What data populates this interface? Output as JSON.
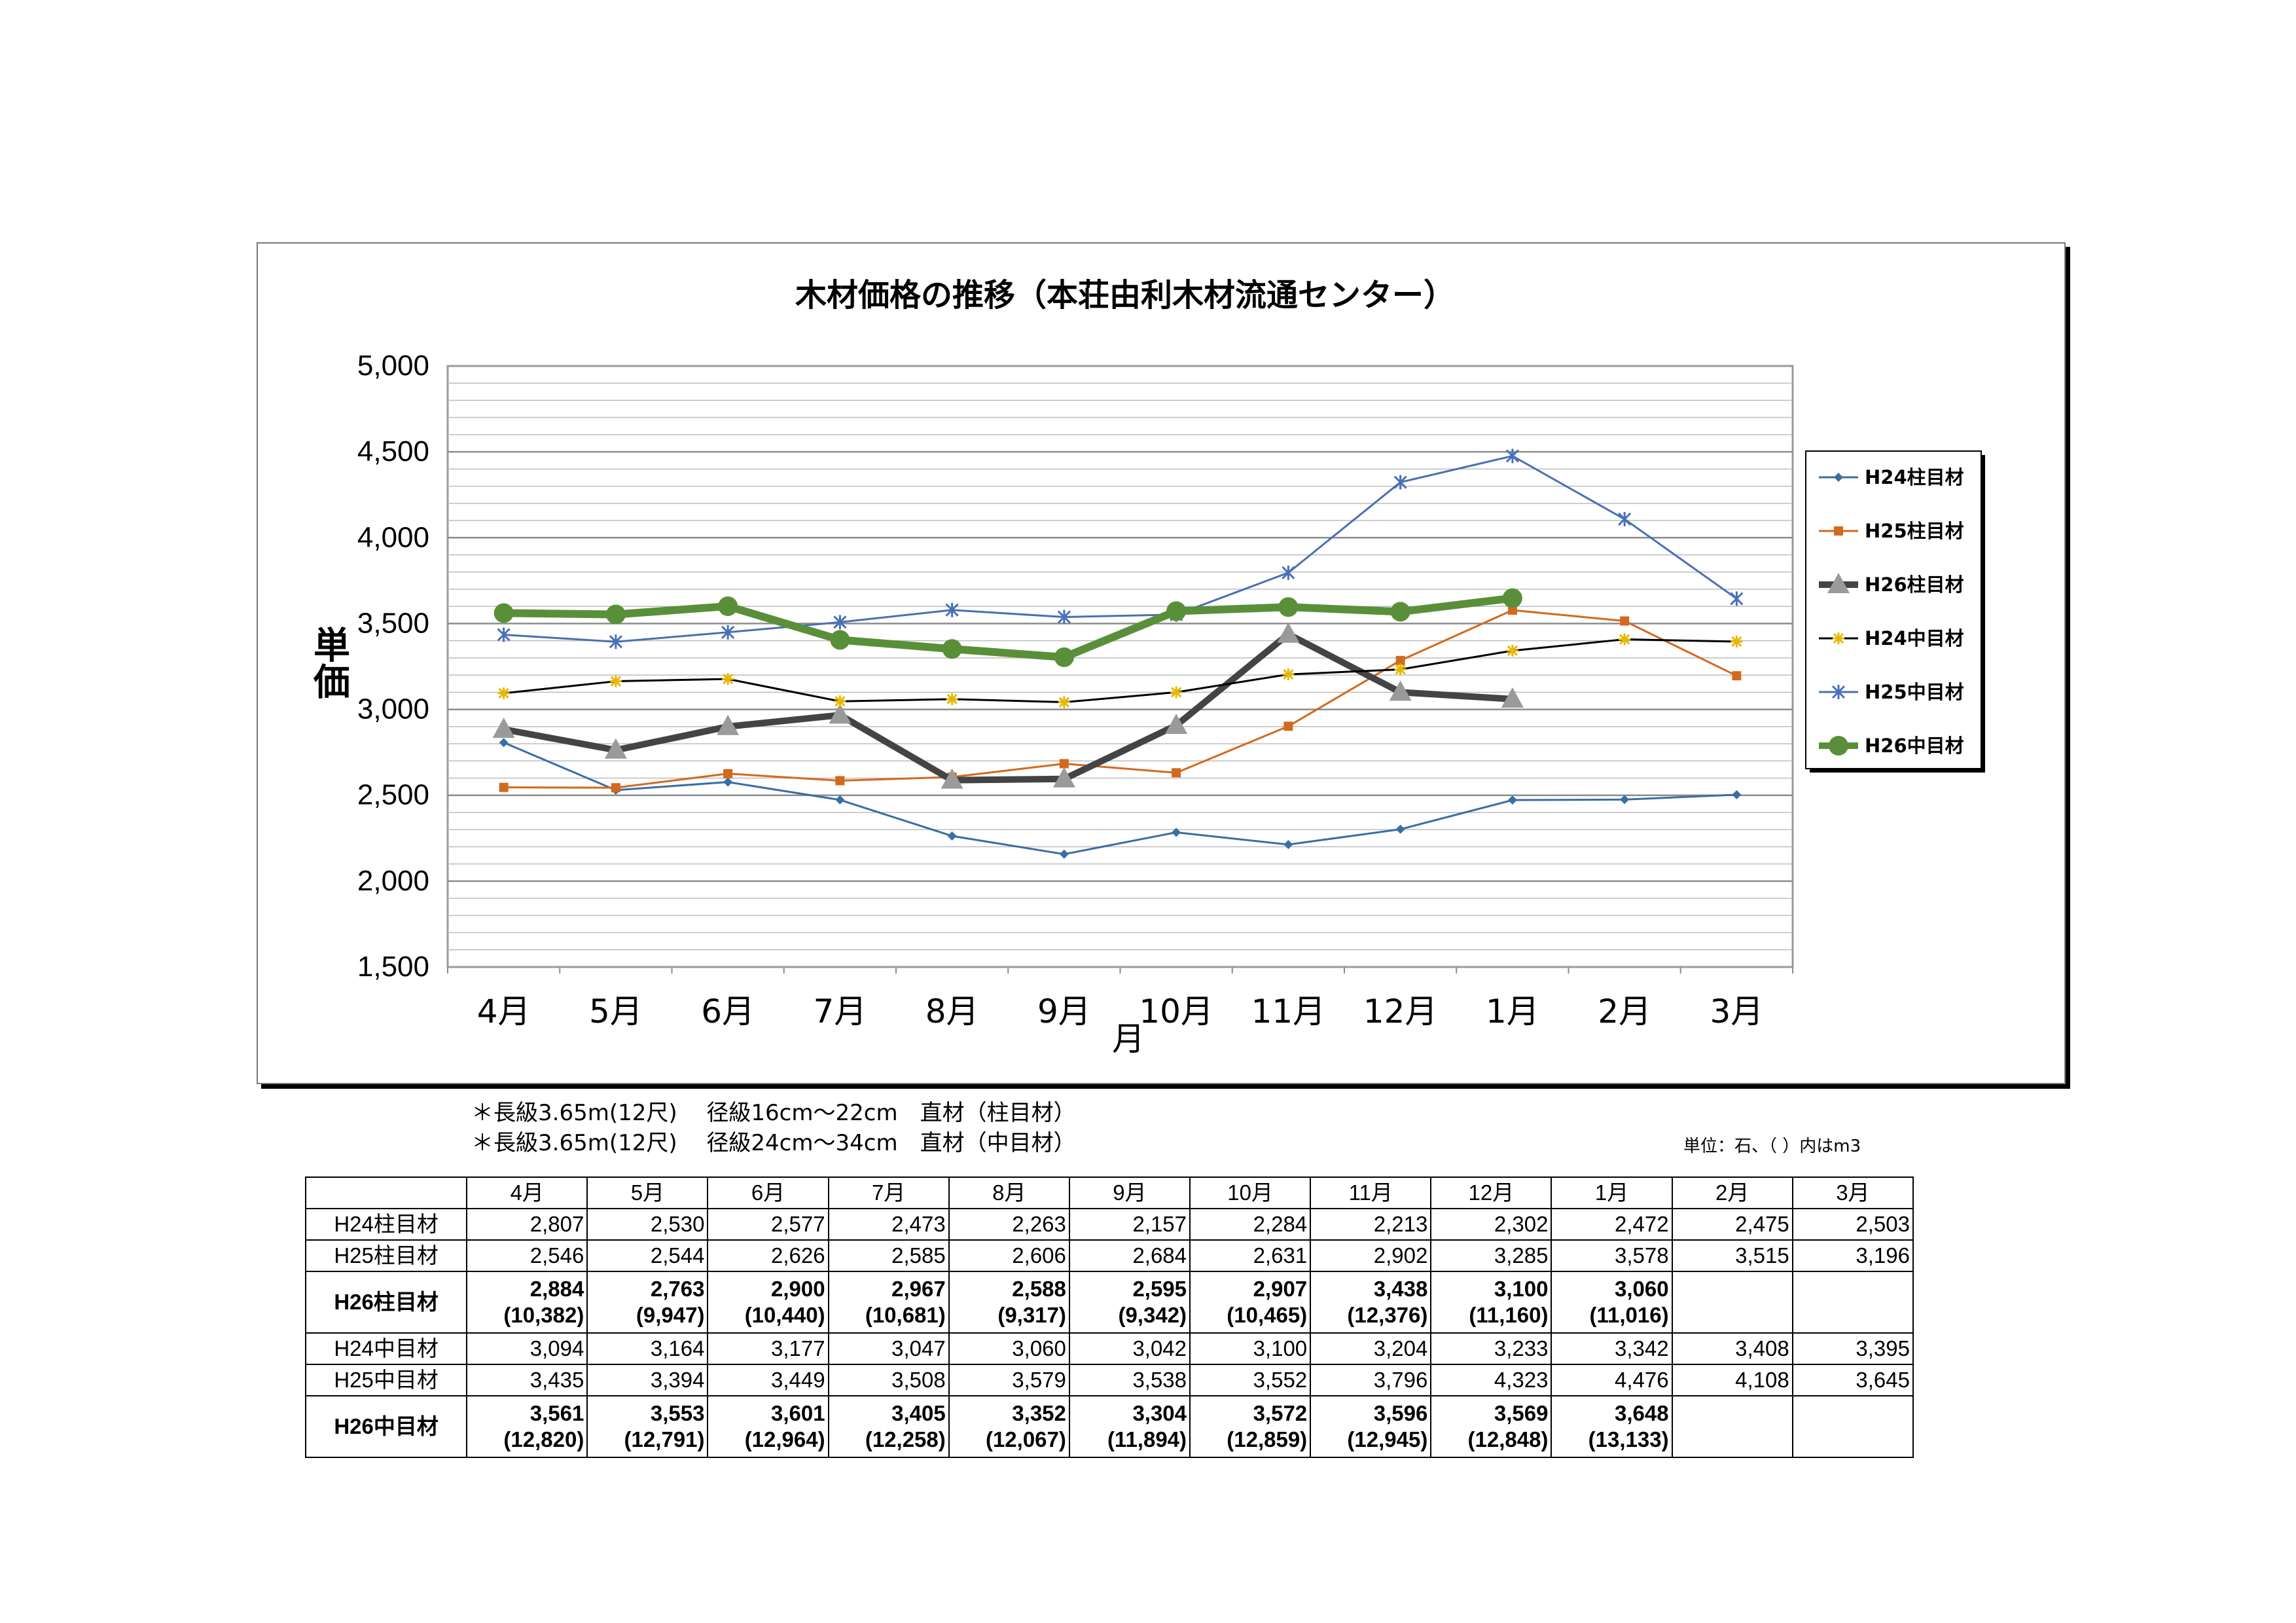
{
  "chart_data": {
    "type": "line",
    "title": "木材価格の推移（本荘由利木材流通センター）",
    "xlabel": "月",
    "ylabel": "単価",
    "categories": [
      "4月",
      "5月",
      "6月",
      "7月",
      "8月",
      "9月",
      "10月",
      "11月",
      "12月",
      "1月",
      "2月",
      "3月"
    ],
    "ylim": [
      1500,
      5000
    ],
    "yticks": [
      "1,500",
      "2,000",
      "2,500",
      "3,000",
      "3,500",
      "4,000",
      "4,500",
      "5,000"
    ],
    "ytick_values": [
      1500,
      2000,
      2500,
      3000,
      3500,
      4000,
      4500,
      5000
    ],
    "grid": true,
    "legend_position": "right",
    "series": [
      {
        "name": "H24柱目材",
        "color": "#3a6ea5",
        "marker": "diamond",
        "width": 3,
        "values": [
          2807,
          2530,
          2577,
          2473,
          2263,
          2157,
          2284,
          2213,
          2302,
          2472,
          2475,
          2503
        ]
      },
      {
        "name": "H25柱目材",
        "color": "#d2691e",
        "marker": "square",
        "width": 3,
        "values": [
          2546,
          2544,
          2626,
          2585,
          2606,
          2684,
          2631,
          2902,
          3285,
          3578,
          3515,
          3196
        ]
      },
      {
        "name": "H26柱目材",
        "color": "#444444",
        "marker": "triangle",
        "width": 10,
        "values": [
          2884,
          2763,
          2900,
          2967,
          2588,
          2595,
          2907,
          3438,
          3100,
          3060,
          null,
          null
        ]
      },
      {
        "name": "H24中目材",
        "color": "#000000",
        "marker": "star",
        "width": 3,
        "values": [
          3094,
          3164,
          3177,
          3047,
          3060,
          3042,
          3100,
          3204,
          3233,
          3342,
          3408,
          3395
        ]
      },
      {
        "name": "H25中目材",
        "color": "#4a6fb5",
        "marker": "x",
        "width": 3,
        "values": [
          3435,
          3394,
          3449,
          3508,
          3579,
          3538,
          3552,
          3796,
          4323,
          4476,
          4108,
          3645
        ]
      },
      {
        "name": "H26中目材",
        "color": "#5a8f3a",
        "marker": "circle",
        "width": 12,
        "values": [
          3561,
          3553,
          3601,
          3405,
          3352,
          3304,
          3572,
          3596,
          3569,
          3648,
          null,
          null
        ]
      }
    ]
  },
  "notes": {
    "line1": "＊長級3.65m(12尺)　 径級16cm～22cm　直材（柱目材）",
    "line2": "＊長級3.65m(12尺)　 径級24cm～34cm　直材（中目材）",
    "unit": "単位：石、（ ）内はm3"
  },
  "table": {
    "headers": [
      "",
      "4月",
      "5月",
      "6月",
      "7月",
      "8月",
      "9月",
      "10月",
      "11月",
      "12月",
      "1月",
      "2月",
      "3月"
    ],
    "rows": [
      {
        "label": "H24柱目材",
        "bold": false,
        "cells": [
          "2,807",
          "2,530",
          "2,577",
          "2,473",
          "2,263",
          "2,157",
          "2,284",
          "2,213",
          "2,302",
          "2,472",
          "2,475",
          "2,503"
        ]
      },
      {
        "label": "H25柱目材",
        "bold": false,
        "cells": [
          "2,546",
          "2,544",
          "2,626",
          "2,585",
          "2,606",
          "2,684",
          "2,631",
          "2,902",
          "3,285",
          "3,578",
          "3,515",
          "3,196"
        ]
      },
      {
        "label": "H26柱目材",
        "bold": true,
        "cells": [
          "2,884",
          "2,763",
          "2,900",
          "2,967",
          "2,588",
          "2,595",
          "2,907",
          "3,438",
          "3,100",
          "3,060",
          "",
          ""
        ],
        "sub": [
          "(10,382)",
          "(9,947)",
          "(10,440)",
          "(10,681)",
          "(9,317)",
          "(9,342)",
          "(10,465)",
          "(12,376)",
          "(11,160)",
          "(11,016)",
          "",
          ""
        ]
      },
      {
        "label": "H24中目材",
        "bold": false,
        "cells": [
          "3,094",
          "3,164",
          "3,177",
          "3,047",
          "3,060",
          "3,042",
          "3,100",
          "3,204",
          "3,233",
          "3,342",
          "3,408",
          "3,395"
        ]
      },
      {
        "label": "H25中目材",
        "bold": false,
        "cells": [
          "3,435",
          "3,394",
          "3,449",
          "3,508",
          "3,579",
          "3,538",
          "3,552",
          "3,796",
          "4,323",
          "4,476",
          "4,108",
          "3,645"
        ]
      },
      {
        "label": "H26中目材",
        "bold": true,
        "cells": [
          "3,561",
          "3,553",
          "3,601",
          "3,405",
          "3,352",
          "3,304",
          "3,572",
          "3,596",
          "3,569",
          "3,648",
          "",
          ""
        ],
        "sub": [
          "(12,820)",
          "(12,791)",
          "(12,964)",
          "(12,258)",
          "(12,067)",
          "(11,894)",
          "(12,859)",
          "(12,945)",
          "(12,848)",
          "(13,133)",
          "",
          ""
        ]
      }
    ]
  }
}
